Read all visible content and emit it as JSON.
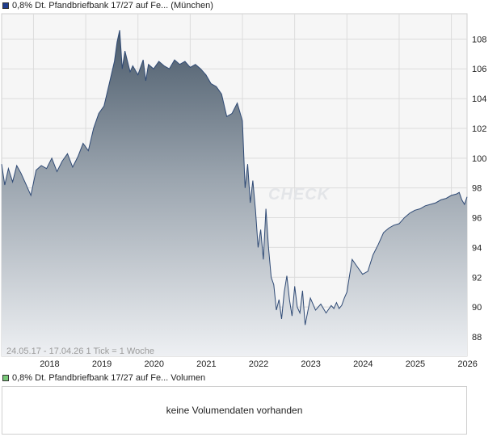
{
  "price_legend": {
    "label": "0,8% Dt. Pfandbriefbank 17/27 auf Fe... (München)",
    "color": "#1f3d8f"
  },
  "volume_legend": {
    "label": "0,8% Dt. Pfandbriefbank 17/27 auf Fe... Volumen",
    "color": "#79c979"
  },
  "volume_panel": {
    "message": "keine Volumendaten vorhanden"
  },
  "watermark": "CHECK",
  "chart_data": {
    "type": "area",
    "title": "0,8% Dt. Pfandbriefbank 17/27 auf Fe... (München)",
    "xlabel": "",
    "ylabel": "",
    "range_label": "24.05.17 - 17.04.26   1 Tick = 1 Woche",
    "x_tick_labels": [
      "2018",
      "2019",
      "2020",
      "2021",
      "2022",
      "2023",
      "2024",
      "2025",
      "2026"
    ],
    "x_tick_values": [
      2018.0,
      2019.0,
      2020.0,
      2021.0,
      2022.0,
      2023.0,
      2024.0,
      2025.0,
      2026.0
    ],
    "y_tick_labels": [
      "88",
      "90",
      "92",
      "94",
      "96",
      "98",
      "100",
      "102",
      "104",
      "106",
      "108"
    ],
    "xlim": [
      2017.39,
      2026.3
    ],
    "ylim": [
      86.7,
      109.7
    ],
    "grid": true,
    "line_color": "#2f4a75",
    "series": [
      {
        "name": "0,8% Dt. Pfandbriefbank 17/27 auf Fe... (München)",
        "x": [
          2017.39,
          2017.45,
          2017.52,
          2017.6,
          2017.68,
          2017.76,
          2017.85,
          2017.95,
          2018.05,
          2018.15,
          2018.25,
          2018.35,
          2018.45,
          2018.55,
          2018.65,
          2018.75,
          2018.85,
          2018.95,
          2019.05,
          2019.15,
          2019.25,
          2019.35,
          2019.45,
          2019.55,
          2019.6,
          2019.65,
          2019.7,
          2019.75,
          2019.8,
          2019.85,
          2019.9,
          2020.0,
          2020.1,
          2020.15,
          2020.2,
          2020.3,
          2020.4,
          2020.5,
          2020.6,
          2020.7,
          2020.8,
          2020.9,
          2021.0,
          2021.1,
          2021.2,
          2021.3,
          2021.4,
          2021.5,
          2021.6,
          2021.7,
          2021.8,
          2021.9,
          2022.0,
          2022.05,
          2022.1,
          2022.15,
          2022.2,
          2022.25,
          2022.3,
          2022.35,
          2022.4,
          2022.45,
          2022.5,
          2022.55,
          2022.6,
          2022.65,
          2022.7,
          2022.75,
          2022.8,
          2022.85,
          2022.9,
          2022.95,
          2023.0,
          2023.05,
          2023.1,
          2023.15,
          2023.2,
          2023.3,
          2023.4,
          2023.5,
          2023.6,
          2023.7,
          2023.75,
          2023.8,
          2023.85,
          2023.9,
          2023.95,
          2024.0,
          2024.05,
          2024.1,
          2024.2,
          2024.3,
          2024.4,
          2024.5,
          2024.6,
          2024.7,
          2024.8,
          2024.9,
          2025.0,
          2025.1,
          2025.2,
          2025.3,
          2025.4,
          2025.5,
          2025.6,
          2025.7,
          2025.8,
          2025.9,
          2026.0,
          2026.1,
          2026.15,
          2026.2,
          2026.25,
          2026.3
        ],
        "values": [
          99.6,
          98.2,
          99.3,
          98.4,
          99.5,
          99.0,
          98.3,
          97.5,
          99.2,
          99.5,
          99.3,
          100.0,
          99.1,
          99.8,
          100.3,
          99.4,
          100.1,
          101.0,
          100.5,
          102.0,
          103.0,
          103.5,
          105.0,
          106.5,
          107.8,
          108.6,
          106.0,
          107.2,
          106.5,
          105.8,
          106.2,
          105.6,
          106.6,
          105.2,
          106.3,
          106.0,
          106.5,
          106.2,
          106.0,
          106.6,
          106.3,
          106.5,
          106.1,
          106.3,
          106.0,
          105.6,
          105.0,
          104.8,
          104.3,
          102.8,
          103.0,
          103.7,
          102.5,
          98.0,
          99.6,
          97.0,
          98.5,
          96.5,
          94.0,
          95.2,
          93.2,
          96.6,
          94.0,
          92.0,
          91.5,
          89.8,
          90.5,
          89.2,
          91.0,
          92.1,
          90.5,
          89.4,
          91.4,
          90.0,
          89.6,
          91.1,
          88.8,
          90.6,
          89.8,
          90.2,
          89.6,
          90.1,
          89.9,
          90.3,
          89.9,
          90.1,
          90.6,
          91.0,
          92.1,
          93.2,
          92.7,
          92.2,
          92.4,
          93.5,
          94.2,
          95.0,
          95.3,
          95.5,
          95.6,
          96.0,
          96.3,
          96.5,
          96.6,
          96.8,
          96.9,
          97.0,
          97.2,
          97.3,
          97.5,
          97.6,
          97.7,
          97.2,
          96.9,
          97.4
        ]
      }
    ]
  }
}
